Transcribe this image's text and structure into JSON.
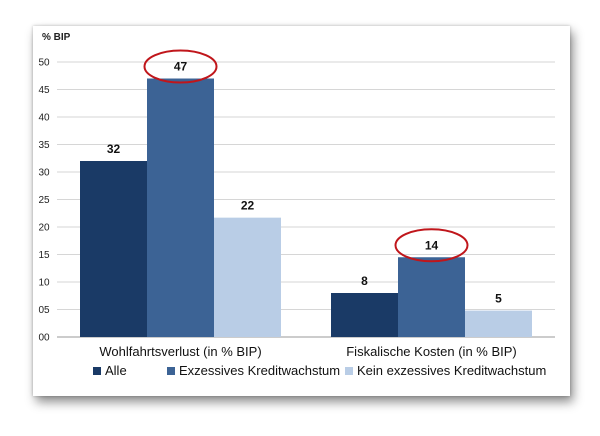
{
  "chart_data": {
    "type": "bar",
    "ylabel": "% BIP",
    "ylim": [
      0,
      50
    ],
    "y_ticks": [
      "00",
      "05",
      "10",
      "15",
      "20",
      "25",
      "30",
      "35",
      "40",
      "45",
      "50"
    ],
    "categories": [
      "Wohlfahrtsverlust (in % BIP)",
      "Fiskalische Kosten (in % BIP)"
    ],
    "series": [
      {
        "name": "Alle",
        "values": [
          32,
          8
        ],
        "labels": [
          "32",
          "8"
        ],
        "color": "#1a3a66"
      },
      {
        "name": "Exzessives Kreditwachstum",
        "values": [
          47,
          14.5
        ],
        "labels": [
          "47",
          "14"
        ],
        "color": "#3c6395"
      },
      {
        "name": "Kein exzessives Kreditwachstum",
        "values": [
          21.7,
          4.8
        ],
        "labels": [
          "22",
          "5"
        ],
        "color": "#b9cde6"
      }
    ],
    "grid": true,
    "legend_position": "bottom",
    "highlight_color": "#c0161b",
    "highlighted_series": "Exzessives Kreditwachstum"
  }
}
